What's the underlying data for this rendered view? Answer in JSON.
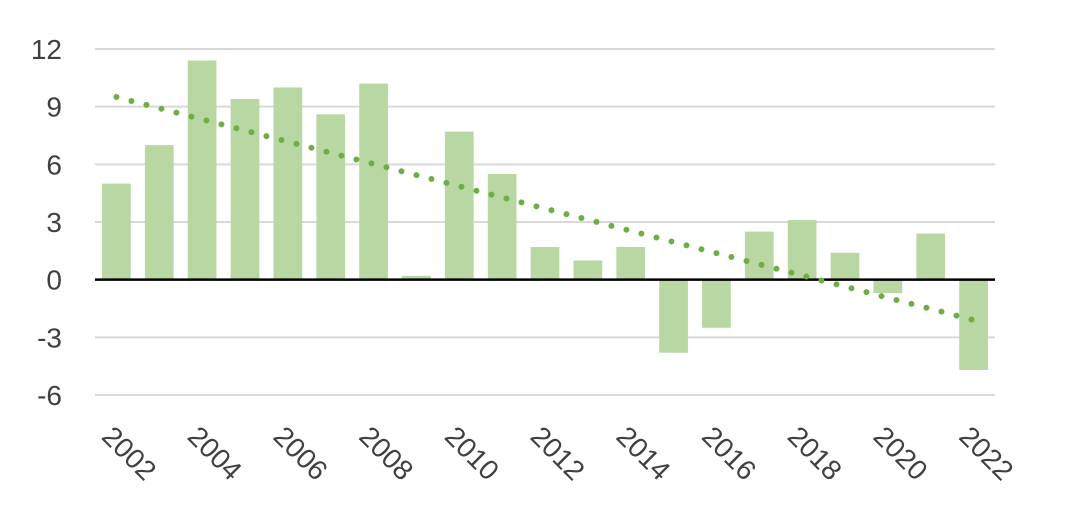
{
  "chart_data": {
    "type": "bar",
    "title": "",
    "xlabel": "",
    "ylabel": "",
    "categories": [
      "2002",
      "2003",
      "2004",
      "2005",
      "2006",
      "2007",
      "2008",
      "2009",
      "2010",
      "2011",
      "2012",
      "2013",
      "2014",
      "2015",
      "2016",
      "2017",
      "2018",
      "2019",
      "2020",
      "2021",
      "2022"
    ],
    "x_tick_labels": [
      "2002",
      "2004",
      "2006",
      "2008",
      "2010",
      "2012",
      "2014",
      "2016",
      "2018",
      "2020",
      "2022"
    ],
    "series": [
      {
        "values": [
          5.0,
          7.0,
          11.4,
          9.4,
          10.0,
          8.6,
          10.2,
          0.2,
          7.7,
          5.5,
          1.7,
          1.0,
          1.7,
          -3.8,
          -2.5,
          2.5,
          3.1,
          1.4,
          -0.7,
          2.4,
          -4.7
        ]
      }
    ],
    "trendline": {
      "type": "linear",
      "style": "dotted",
      "start": 9.5,
      "end": -2.1
    },
    "ylim": [
      -6,
      12
    ],
    "y_ticks": [
      "12",
      "9",
      "6",
      "3",
      "0",
      "-3",
      "-6"
    ],
    "grid": true,
    "legend": "none",
    "colors": {
      "bar": "#b8d7a3",
      "trend": "#70ad47",
      "grid": "#d9d9d9",
      "zero_line": "#000000",
      "text": "#404040"
    }
  }
}
